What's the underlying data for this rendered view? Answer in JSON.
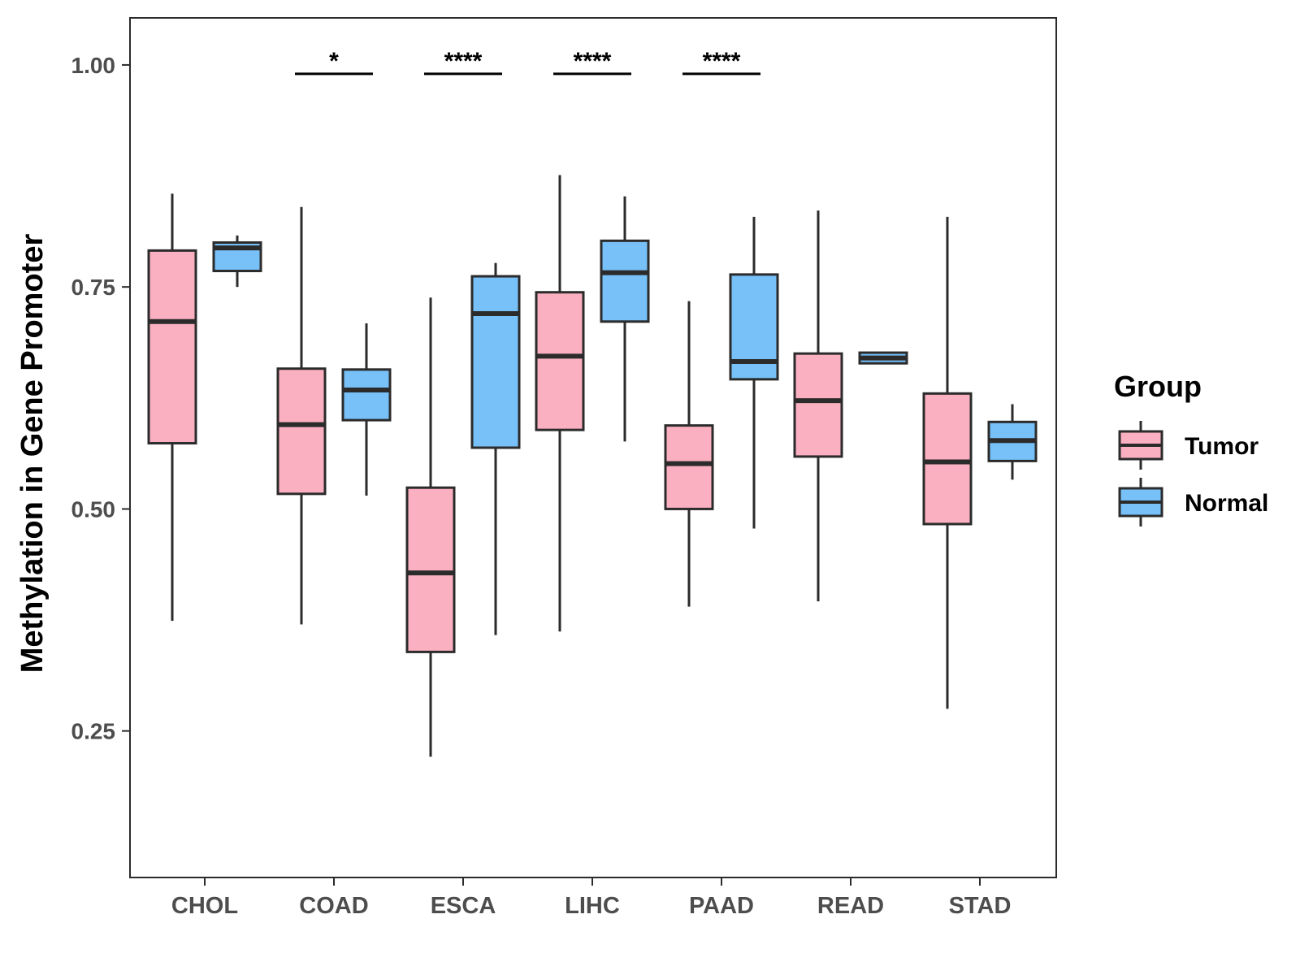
{
  "chart_data": {
    "type": "boxplot",
    "title": "",
    "xlabel": "",
    "ylabel": "Methylation in Gene Promoter",
    "ylim": [
      0.085,
      1.053
    ],
    "yticks": [
      0.25,
      0.5,
      0.75,
      1.0
    ],
    "ytick_labels": [
      "0.25",
      "0.50",
      "0.75",
      "1.00"
    ],
    "categories": [
      "CHOL",
      "COAD",
      "ESCA",
      "LIHC",
      "PAAD",
      "READ",
      "STAD"
    ],
    "grid": false,
    "legend": {
      "title": "Group",
      "position": "right",
      "entries": [
        {
          "name": "Tumor",
          "color": "#FBB0C1"
        },
        {
          "name": "Normal",
          "color": "#77C0F8"
        }
      ]
    },
    "series": [
      {
        "name": "Tumor",
        "color": "#FBB0C1",
        "boxes": [
          {
            "category": "CHOL",
            "whisker_low": 0.374,
            "q1": 0.574,
            "median": 0.711,
            "q3": 0.791,
            "whisker_high": 0.855
          },
          {
            "category": "COAD",
            "whisker_low": 0.37,
            "q1": 0.517,
            "median": 0.595,
            "q3": 0.658,
            "whisker_high": 0.84
          },
          {
            "category": "ESCA",
            "whisker_low": 0.221,
            "q1": 0.339,
            "median": 0.428,
            "q3": 0.524,
            "whisker_high": 0.738
          },
          {
            "category": "LIHC",
            "whisker_low": 0.362,
            "q1": 0.589,
            "median": 0.672,
            "q3": 0.744,
            "whisker_high": 0.876
          },
          {
            "category": "PAAD",
            "whisker_low": 0.39,
            "q1": 0.5,
            "median": 0.551,
            "q3": 0.594,
            "whisker_high": 0.734
          },
          {
            "category": "READ",
            "whisker_low": 0.396,
            "q1": 0.559,
            "median": 0.622,
            "q3": 0.675,
            "whisker_high": 0.836
          },
          {
            "category": "STAD",
            "whisker_low": 0.275,
            "q1": 0.483,
            "median": 0.553,
            "q3": 0.63,
            "whisker_high": 0.829
          }
        ]
      },
      {
        "name": "Normal",
        "color": "#77C0F8",
        "boxes": [
          {
            "category": "CHOL",
            "whisker_low": 0.75,
            "q1": 0.768,
            "median": 0.794,
            "q3": 0.8,
            "whisker_high": 0.808
          },
          {
            "category": "COAD",
            "whisker_low": 0.515,
            "q1": 0.6,
            "median": 0.634,
            "q3": 0.657,
            "whisker_high": 0.709
          },
          {
            "category": "ESCA",
            "whisker_low": 0.358,
            "q1": 0.569,
            "median": 0.72,
            "q3": 0.762,
            "whisker_high": 0.777
          },
          {
            "category": "LIHC",
            "whisker_low": 0.576,
            "q1": 0.711,
            "median": 0.766,
            "q3": 0.802,
            "whisker_high": 0.852
          },
          {
            "category": "PAAD",
            "whisker_low": 0.478,
            "q1": 0.646,
            "median": 0.666,
            "q3": 0.764,
            "whisker_high": 0.829
          },
          {
            "category": "READ",
            "whisker_low": 0.664,
            "q1": 0.664,
            "median": 0.67,
            "q3": 0.676,
            "whisker_high": 0.676
          },
          {
            "category": "STAD",
            "whisker_low": 0.533,
            "q1": 0.554,
            "median": 0.577,
            "q3": 0.598,
            "whisker_high": 0.618
          }
        ]
      }
    ],
    "significance": [
      {
        "category": "COAD",
        "label": "*"
      },
      {
        "category": "ESCA",
        "label": "****"
      },
      {
        "category": "LIHC",
        "label": "****"
      },
      {
        "category": "PAAD",
        "label": "****"
      }
    ],
    "significance_level": 0.99
  }
}
